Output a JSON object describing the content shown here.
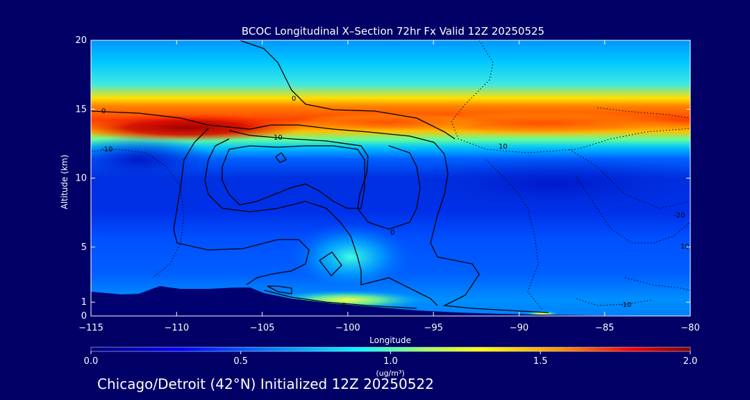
{
  "chart_data": {
    "type": "heatmap",
    "title": "BCOC Longitudinal X–Section 72hr  Fx Valid 12Z 20250525",
    "xlabel": "Longitude",
    "ylabel": "Altitude (km)",
    "xlim": [
      -115,
      -80
    ],
    "ylim": [
      0,
      20
    ],
    "x_ticks": [
      -115,
      -110,
      -105,
      -100,
      -95,
      -90,
      -85,
      -80
    ],
    "x_tick_labels": [
      "−115",
      "−110",
      "−105",
      "−100",
      "−95",
      "−90",
      "−85",
      "−80"
    ],
    "y_ticks": [
      0,
      1,
      5,
      10,
      15,
      20
    ],
    "y_tick_labels": [
      "0",
      "1",
      "5",
      "10",
      "15",
      "20"
    ],
    "colorbar": {
      "min": 0.0,
      "max": 2.0,
      "ticks": [
        0.0,
        0.5,
        1.0,
        1.5,
        2.0
      ],
      "tick_labels": [
        "0.0",
        "0.5",
        "1.0",
        "1.5",
        "2.0"
      ],
      "unit_label": "(ug/m³)",
      "colormap": [
        "#000080",
        "#0000ff",
        "#0096ff",
        "#00ffff",
        "#96ff64",
        "#ffff00",
        "#ff9600",
        "#ff0000",
        "#800000"
      ]
    },
    "contour_labels": [
      "0",
      "-10",
      "10",
      "0",
      "0",
      "0",
      "10",
      "-10",
      "10",
      "-20"
    ],
    "fields": {
      "stratospheric_max_band": {
        "longitudes": [
          -115,
          -110,
          -107,
          -105,
          -100,
          -95,
          -90,
          -85,
          -80
        ],
        "altitude_km": [
          14.0,
          13.8,
          13.6,
          13.4,
          13.8,
          14.2,
          14.0,
          13.8,
          13.8
        ],
        "value": [
          1.9,
          2.0,
          2.0,
          1.7,
          1.5,
          1.6,
          1.7,
          1.6,
          1.5
        ]
      },
      "surface_max": {
        "longitude": -99,
        "altitude_km": 1.2,
        "value": 1.3
      },
      "midlevel_plume": {
        "longitude": -99.5,
        "altitude_km": 4.6,
        "value": 0.9
      }
    },
    "terrain_km": [
      [
        -115,
        1.8
      ],
      [
        -113,
        1.5
      ],
      [
        -111,
        2.0
      ],
      [
        -109,
        2.1
      ],
      [
        -106,
        2.1
      ],
      [
        -105,
        1.8
      ],
      [
        -103,
        1.3
      ],
      [
        -100,
        1.0
      ],
      [
        -97,
        0.6
      ],
      [
        -94,
        0.35
      ],
      [
        -90,
        0.2
      ],
      [
        -85,
        0.1
      ],
      [
        -80,
        0.05
      ]
    ]
  },
  "footer": "Chicago/Detroit (42°N) Initialized 12Z 20250522"
}
